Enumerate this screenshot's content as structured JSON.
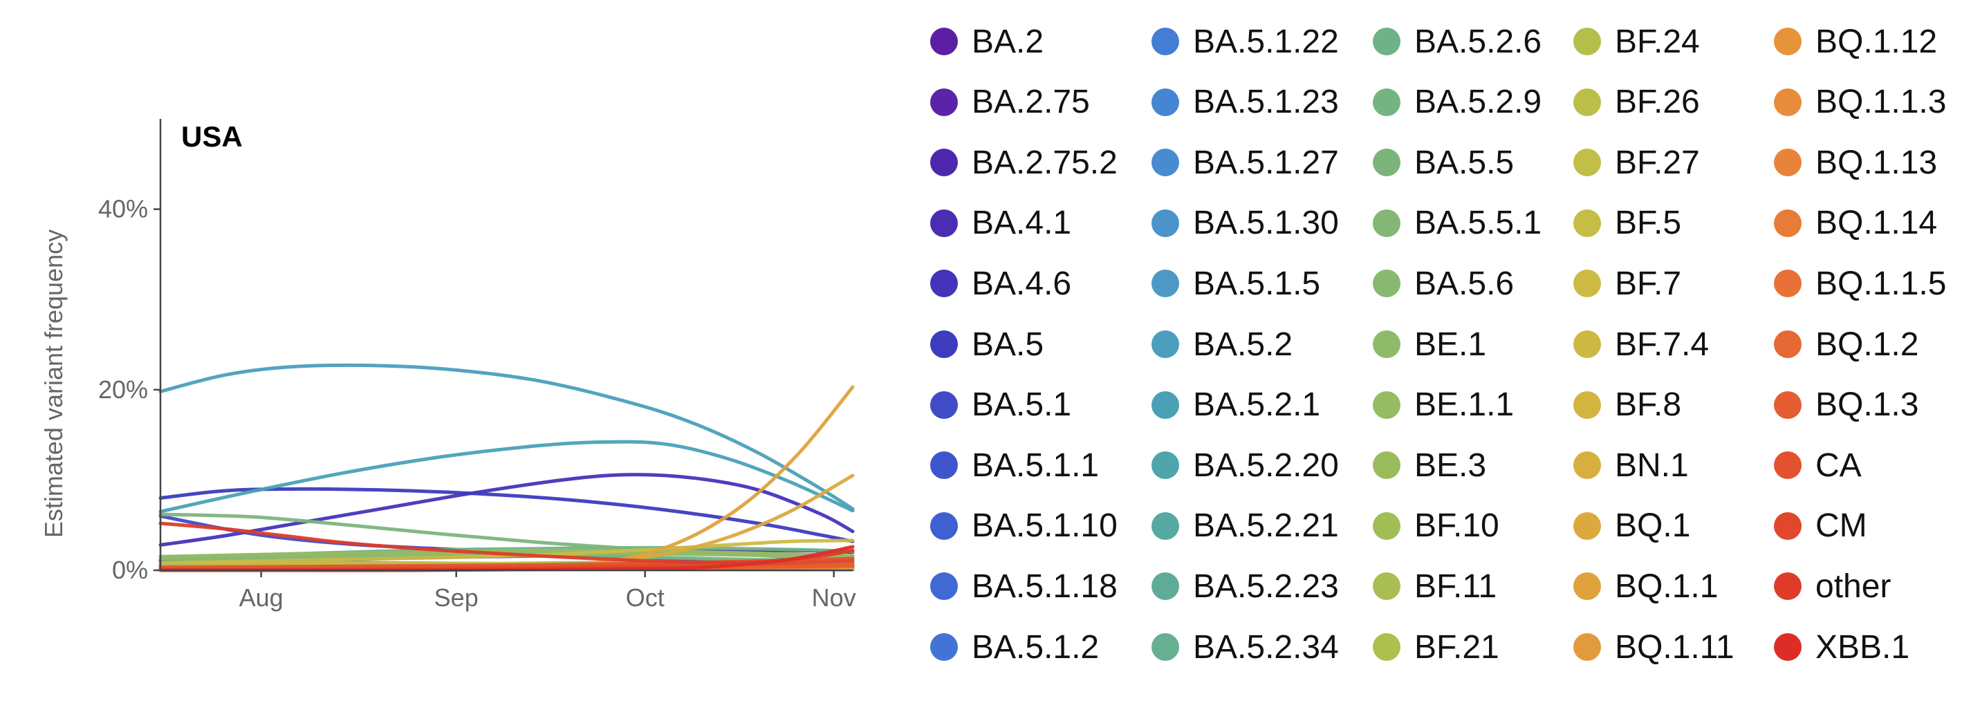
{
  "chart_data": {
    "type": "line",
    "title": "USA",
    "xlabel": "",
    "ylabel": "Estimated variant frequency",
    "x_ticks": [
      "Aug",
      "Sep",
      "Oct",
      "Nov"
    ],
    "y_ticks": [
      "0%",
      "20%",
      "40%"
    ],
    "y_tick_values": [
      0,
      20,
      40
    ],
    "ylim": [
      0,
      50
    ],
    "x_tick_positions": [
      16,
      47,
      77,
      107
    ],
    "xlim": [
      0,
      110
    ],
    "grid": false,
    "legend_position": "right",
    "series": [
      {
        "name": "BA.2",
        "color": "#5c1fa3",
        "x": [
          0,
          20,
          40,
          60,
          80,
          100,
          110
        ],
        "y": [
          0.5,
          0.4,
          0.3,
          0.2,
          0.2,
          0.1,
          0.1
        ]
      },
      {
        "name": "BA.2.75",
        "color": "#5a23a8",
        "x": [
          0,
          20,
          40,
          60,
          80,
          100,
          110
        ],
        "y": [
          1.0,
          1.2,
          1.4,
          1.6,
          2.0,
          2.2,
          2.0
        ]
      },
      {
        "name": "BA.2.75.2",
        "color": "#4f27ae",
        "x": [
          0,
          20,
          40,
          60,
          80,
          100,
          110
        ],
        "y": [
          0.1,
          0.1,
          0.2,
          0.4,
          0.7,
          1.2,
          1.5
        ]
      },
      {
        "name": "BA.4.1",
        "color": "#4a2db3",
        "x": [
          0,
          20,
          40,
          60,
          80,
          100,
          110
        ],
        "y": [
          0.5,
          0.3,
          0.2,
          0.1,
          0.1,
          0.1,
          0.1
        ]
      },
      {
        "name": "BA.4.6",
        "color": "#4434b9",
        "x": [
          0,
          10,
          20,
          35,
          50,
          65,
          75,
          85,
          95,
          105,
          110
        ],
        "y": [
          2.8,
          3.8,
          5.0,
          6.8,
          8.6,
          10.1,
          10.6,
          10.2,
          8.9,
          6.2,
          4.3
        ]
      },
      {
        "name": "BA.5",
        "color": "#3d3bbe",
        "x": [
          0,
          10,
          20,
          35,
          50,
          65,
          80,
          95,
          105,
          110
        ],
        "y": [
          8.0,
          8.8,
          9.0,
          8.9,
          8.5,
          7.8,
          6.7,
          5.2,
          3.9,
          3.2
        ]
      },
      {
        "name": "BA.5.1",
        "color": "#3f4bc7",
        "x": [
          0,
          15,
          30,
          50,
          70,
          90,
          110
        ],
        "y": [
          6.0,
          4.0,
          2.9,
          2.2,
          1.6,
          1.0,
          0.7
        ]
      },
      {
        "name": "BA.5.1.1",
        "color": "#3f55cc",
        "x": [
          0,
          20,
          40,
          60,
          80,
          100,
          110
        ],
        "y": [
          1.0,
          0.9,
          0.8,
          0.7,
          0.6,
          0.5,
          0.5
        ]
      },
      {
        "name": "BA.5.1.10",
        "color": "#3f60d0",
        "x": [
          0,
          20,
          40,
          60,
          80,
          100,
          110
        ],
        "y": [
          0.3,
          0.3,
          0.3,
          0.2,
          0.2,
          0.2,
          0.2
        ]
      },
      {
        "name": "BA.5.1.18",
        "color": "#406ad3",
        "x": [
          0,
          20,
          40,
          60,
          80,
          100,
          110
        ],
        "y": [
          0.2,
          0.2,
          0.2,
          0.2,
          0.1,
          0.1,
          0.1
        ]
      },
      {
        "name": "BA.5.1.2",
        "color": "#4374d5",
        "x": [
          0,
          20,
          40,
          60,
          80,
          100,
          110
        ],
        "y": [
          0.8,
          0.7,
          0.6,
          0.5,
          0.4,
          0.3,
          0.3
        ]
      },
      {
        "name": "BA.5.1.22",
        "color": "#447dd4",
        "x": [
          0,
          20,
          40,
          60,
          80,
          100,
          110
        ],
        "y": [
          0.3,
          0.4,
          0.5,
          0.6,
          0.6,
          0.5,
          0.5
        ]
      },
      {
        "name": "BA.5.1.23",
        "color": "#4685d2",
        "x": [
          0,
          20,
          40,
          60,
          80,
          100,
          110
        ],
        "y": [
          0.2,
          0.3,
          0.3,
          0.4,
          0.4,
          0.4,
          0.4
        ]
      },
      {
        "name": "BA.5.1.27",
        "color": "#488ccf",
        "x": [
          0,
          20,
          40,
          60,
          80,
          100,
          110
        ],
        "y": [
          0.1,
          0.2,
          0.3,
          0.4,
          0.5,
          0.5,
          0.5
        ]
      },
      {
        "name": "BA.5.1.30",
        "color": "#4b93cb",
        "x": [
          0,
          20,
          40,
          60,
          80,
          100,
          110
        ],
        "y": [
          0.2,
          0.3,
          0.4,
          0.5,
          0.6,
          0.6,
          0.6
        ]
      },
      {
        "name": "BA.5.1.5",
        "color": "#4d99c6",
        "x": [
          0,
          20,
          40,
          60,
          80,
          100,
          110
        ],
        "y": [
          0.3,
          0.3,
          0.3,
          0.3,
          0.2,
          0.2,
          0.2
        ]
      },
      {
        "name": "BA.5.2",
        "color": "#4a9fbd",
        "x": [
          0,
          10,
          20,
          32,
          45,
          60,
          75,
          85,
          95,
          105,
          110
        ],
        "y": [
          19.8,
          21.6,
          22.5,
          22.7,
          22.3,
          21.0,
          18.5,
          16.2,
          13.0,
          9.0,
          6.8
        ]
      },
      {
        "name": "BA.5.2.1",
        "color": "#4aa1b5",
        "x": [
          0,
          15,
          30,
          45,
          60,
          70,
          80,
          90,
          100,
          110
        ],
        "y": [
          6.5,
          8.8,
          10.9,
          12.6,
          13.8,
          14.2,
          14.0,
          12.4,
          9.8,
          6.6
        ]
      },
      {
        "name": "BA.5.2.20",
        "color": "#4ea5ab",
        "x": [
          0,
          20,
          40,
          60,
          80,
          100,
          110
        ],
        "y": [
          0.2,
          0.3,
          0.4,
          0.5,
          0.6,
          0.6,
          0.6
        ]
      },
      {
        "name": "BA.5.2.21",
        "color": "#55a9a1",
        "x": [
          0,
          20,
          40,
          60,
          80,
          100,
          110
        ],
        "y": [
          0.4,
          0.4,
          0.4,
          0.3,
          0.3,
          0.3,
          0.3
        ]
      },
      {
        "name": "BA.5.2.23",
        "color": "#5eac98",
        "x": [
          0,
          20,
          40,
          60,
          80,
          100,
          110
        ],
        "y": [
          0.2,
          0.2,
          0.3,
          0.3,
          0.3,
          0.3,
          0.3
        ]
      },
      {
        "name": "BA.5.2.34",
        "color": "#66af90",
        "x": [
          0,
          20,
          40,
          60,
          80,
          100,
          110
        ],
        "y": [
          0.1,
          0.2,
          0.3,
          0.4,
          0.5,
          0.6,
          0.6
        ]
      },
      {
        "name": "BA.5.2.6",
        "color": "#6eb288",
        "x": [
          0,
          20,
          40,
          60,
          80,
          100,
          110
        ],
        "y": [
          1.5,
          1.8,
          2.2,
          2.4,
          2.5,
          2.3,
          2.1
        ]
      },
      {
        "name": "BA.5.2.9",
        "color": "#75b482",
        "x": [
          0,
          20,
          40,
          60,
          80,
          100,
          110
        ],
        "y": [
          1.2,
          1.5,
          1.7,
          1.6,
          1.4,
          1.1,
          1.0
        ]
      },
      {
        "name": "BA.5.5",
        "color": "#7cb57c",
        "x": [
          0,
          15,
          30,
          45,
          60,
          75,
          90,
          110
        ],
        "y": [
          6.2,
          5.9,
          5.0,
          4.0,
          3.1,
          2.4,
          1.8,
          1.2
        ]
      },
      {
        "name": "BA.5.5.1",
        "color": "#83b776",
        "x": [
          0,
          20,
          40,
          60,
          80,
          100,
          110
        ],
        "y": [
          0.4,
          0.4,
          0.4,
          0.3,
          0.3,
          0.3,
          0.3
        ]
      },
      {
        "name": "BA.5.6",
        "color": "#89b870",
        "x": [
          0,
          20,
          40,
          60,
          80,
          100,
          110
        ],
        "y": [
          1.2,
          1.5,
          1.8,
          2.0,
          2.0,
          1.8,
          1.6
        ]
      },
      {
        "name": "BE.1",
        "color": "#8fba6a",
        "x": [
          0,
          20,
          40,
          60,
          80,
          100,
          110
        ],
        "y": [
          0.8,
          1.2,
          1.6,
          1.8,
          1.8,
          1.6,
          1.4
        ]
      },
      {
        "name": "BE.1.1",
        "color": "#95bb63",
        "x": [
          0,
          20,
          40,
          60,
          80,
          100,
          110
        ],
        "y": [
          1.5,
          1.8,
          2.0,
          2.2,
          2.1,
          1.8,
          1.5
        ]
      },
      {
        "name": "BE.3",
        "color": "#9bbc5c",
        "x": [
          0,
          20,
          40,
          60,
          80,
          100,
          110
        ],
        "y": [
          0.3,
          0.5,
          0.6,
          0.8,
          0.9,
          0.9,
          0.8
        ]
      },
      {
        "name": "BF.10",
        "color": "#a1bd56",
        "x": [
          0,
          20,
          40,
          60,
          80,
          100,
          110
        ],
        "y": [
          0.2,
          0.3,
          0.3,
          0.4,
          0.4,
          0.4,
          0.4
        ]
      },
      {
        "name": "BF.11",
        "color": "#a8be52",
        "x": [
          0,
          20,
          40,
          60,
          80,
          100,
          110
        ],
        "y": [
          0.1,
          0.2,
          0.3,
          0.4,
          0.5,
          0.5,
          0.5
        ]
      },
      {
        "name": "BF.21",
        "color": "#aebf4e",
        "x": [
          0,
          20,
          40,
          60,
          80,
          100,
          110
        ],
        "y": [
          0.1,
          0.1,
          0.1,
          0.2,
          0.2,
          0.2,
          0.2
        ]
      },
      {
        "name": "BF.24",
        "color": "#b4bf4b",
        "x": [
          0,
          20,
          40,
          60,
          80,
          100,
          110
        ],
        "y": [
          0.2,
          0.2,
          0.2,
          0.2,
          0.2,
          0.2,
          0.2
        ]
      },
      {
        "name": "BF.26",
        "color": "#bbbf49",
        "x": [
          0,
          20,
          40,
          60,
          80,
          100,
          110
        ],
        "y": [
          0.2,
          0.2,
          0.2,
          0.2,
          0.2,
          0.2,
          0.2
        ]
      },
      {
        "name": "BF.27",
        "color": "#c1bf47",
        "x": [
          0,
          20,
          40,
          60,
          80,
          100,
          110
        ],
        "y": [
          0.1,
          0.1,
          0.2,
          0.2,
          0.2,
          0.2,
          0.2
        ]
      },
      {
        "name": "BF.5",
        "color": "#c6bd45",
        "x": [
          0,
          20,
          40,
          60,
          80,
          100,
          110
        ],
        "y": [
          0.8,
          0.8,
          0.8,
          0.7,
          0.6,
          0.5,
          0.5
        ]
      },
      {
        "name": "BF.7",
        "color": "#cbbb43",
        "x": [
          0,
          15,
          30,
          45,
          60,
          75,
          90,
          100,
          110
        ],
        "y": [
          0.8,
          1.0,
          1.2,
          1.4,
          1.7,
          2.2,
          2.8,
          3.2,
          3.3
        ]
      },
      {
        "name": "BF.7.4",
        "color": "#cfb841",
        "x": [
          0,
          20,
          40,
          60,
          80,
          100,
          110
        ],
        "y": [
          0.1,
          0.1,
          0.2,
          0.3,
          0.4,
          0.6,
          0.7
        ]
      },
      {
        "name": "BF.8",
        "color": "#d3b43f",
        "x": [
          0,
          20,
          40,
          60,
          80,
          100,
          110
        ],
        "y": [
          0.2,
          0.3,
          0.3,
          0.4,
          0.4,
          0.4,
          0.4
        ]
      },
      {
        "name": "BN.1",
        "color": "#d7af3e",
        "x": [
          0,
          20,
          40,
          60,
          80,
          100,
          110
        ],
        "y": [
          0.1,
          0.1,
          0.2,
          0.3,
          0.5,
          0.8,
          1.0
        ]
      },
      {
        "name": "BQ.1",
        "color": "#dba93d",
        "x": [
          0,
          20,
          40,
          60,
          70,
          80,
          90,
          100,
          110
        ],
        "y": [
          0.1,
          0.1,
          0.2,
          0.4,
          0.8,
          1.8,
          3.6,
          6.5,
          10.5
        ]
      },
      {
        "name": "BQ.1.1",
        "color": "#dfa23c",
        "x": [
          0,
          20,
          40,
          60,
          70,
          78,
          86,
          94,
          102,
          110
        ],
        "y": [
          0.1,
          0.1,
          0.2,
          0.4,
          0.9,
          2.0,
          4.3,
          8.0,
          13.4,
          20.3
        ]
      },
      {
        "name": "BQ.1.11",
        "color": "#e29b3c",
        "x": [
          0,
          20,
          40,
          60,
          80,
          100,
          110
        ],
        "y": [
          0.1,
          0.1,
          0.1,
          0.1,
          0.2,
          0.3,
          0.4
        ]
      },
      {
        "name": "BQ.1.12",
        "color": "#e5943b",
        "x": [
          0,
          20,
          40,
          60,
          80,
          100,
          110
        ],
        "y": [
          0.1,
          0.1,
          0.1,
          0.1,
          0.2,
          0.3,
          0.4
        ]
      },
      {
        "name": "BQ.1.1.3",
        "color": "#e78c3a",
        "x": [
          0,
          20,
          40,
          60,
          80,
          100,
          110
        ],
        "y": [
          0.1,
          0.1,
          0.1,
          0.1,
          0.2,
          0.3,
          0.4
        ]
      },
      {
        "name": "BQ.1.13",
        "color": "#e88439",
        "x": [
          0,
          20,
          40,
          60,
          80,
          100,
          110
        ],
        "y": [
          0.1,
          0.1,
          0.1,
          0.1,
          0.2,
          0.3,
          0.4
        ]
      },
      {
        "name": "BQ.1.14",
        "color": "#e87b38",
        "x": [
          0,
          20,
          40,
          60,
          80,
          100,
          110
        ],
        "y": [
          0.1,
          0.1,
          0.1,
          0.1,
          0.2,
          0.3,
          0.4
        ]
      },
      {
        "name": "BQ.1.1.5",
        "color": "#e77136",
        "x": [
          0,
          20,
          40,
          60,
          80,
          100,
          110
        ],
        "y": [
          0.1,
          0.1,
          0.1,
          0.1,
          0.2,
          0.4,
          0.5
        ]
      },
      {
        "name": "BQ.1.2",
        "color": "#e66834",
        "x": [
          0,
          20,
          40,
          60,
          80,
          100,
          110
        ],
        "y": [
          0.1,
          0.1,
          0.1,
          0.2,
          0.3,
          0.5,
          0.7
        ]
      },
      {
        "name": "BQ.1.3",
        "color": "#e45d32",
        "x": [
          0,
          20,
          40,
          60,
          80,
          100,
          110
        ],
        "y": [
          0.1,
          0.1,
          0.1,
          0.2,
          0.3,
          0.4,
          0.5
        ]
      },
      {
        "name": "CA",
        "color": "#e2522f",
        "x": [
          0,
          20,
          40,
          60,
          80,
          100,
          110
        ],
        "y": [
          0.3,
          0.4,
          0.5,
          0.6,
          0.8,
          1.1,
          1.3
        ]
      },
      {
        "name": "CM",
        "color": "#e0472c",
        "x": [
          0,
          20,
          40,
          60,
          80,
          100,
          110
        ],
        "y": [
          0.1,
          0.1,
          0.2,
          0.3,
          0.5,
          0.8,
          1.0
        ]
      },
      {
        "name": "other",
        "color": "#de3c29",
        "x": [
          0,
          10,
          20,
          30,
          45,
          60,
          75,
          85,
          95,
          105,
          110
        ],
        "y": [
          5.2,
          4.6,
          3.8,
          3.0,
          2.2,
          1.6,
          1.1,
          0.9,
          0.9,
          1.6,
          2.2
        ]
      },
      {
        "name": "XBB.1",
        "color": "#dc2e26",
        "x": [
          0,
          20,
          40,
          60,
          80,
          90,
          100,
          110
        ],
        "y": [
          0.0,
          0.0,
          0.0,
          0.1,
          0.2,
          0.5,
          1.2,
          2.6
        ]
      }
    ]
  }
}
